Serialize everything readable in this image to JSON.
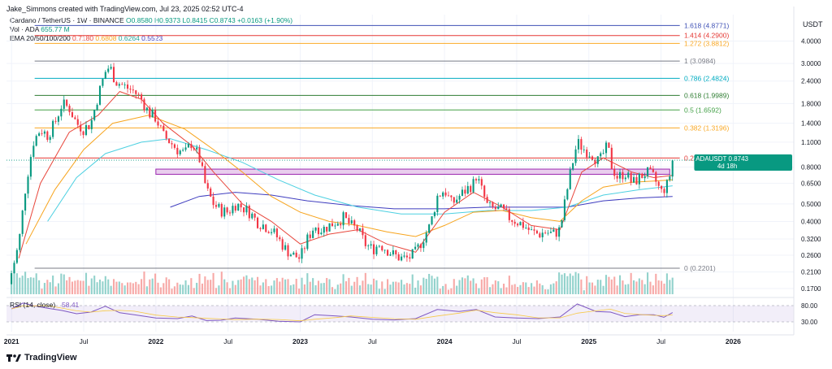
{
  "header": {
    "caption": "Jake_Simmons created with TradingView.com, Jul 23, 2025 02:52 UTC-4"
  },
  "legend": {
    "symbol": "Cardano / TetherUS · 1W · BINANCE",
    "ohlc": "O0.8580 H0.9373 L0.8415 C0.8743 +0.0163 (+1.90%)",
    "vol_label": "Vol · ADA",
    "vol_value": "655.77 M",
    "ema_label": "EMA 20/50/100/200",
    "ema_values": [
      {
        "text": "0.7180",
        "color": "#e8473c"
      },
      {
        "text": "0.6808",
        "color": "#f7a41d"
      },
      {
        "text": "0.6264",
        "color": "#4dd0e1"
      },
      {
        "text": "0.5523",
        "color": "#3f3dbf"
      }
    ]
  },
  "rsi": {
    "label": "RSI (14, close)",
    "value": "58.41",
    "axis_labels": [
      "80.00",
      "30.00"
    ],
    "upper": 80,
    "lower": 30
  },
  "branding": "TradingView",
  "chart_data": {
    "type": "candlestick",
    "y_scale": "log",
    "currency_label": "USDT",
    "y_ticks": [
      "4.0000",
      "3.0000",
      "2.4000",
      "1.8000",
      "1.4000",
      "1.1000",
      "0.8000",
      "0.6500",
      "0.5000",
      "0.4000",
      "0.3200",
      "0.2600",
      "0.2100",
      "0.1700"
    ],
    "y_tick_values": [
      4.0,
      3.0,
      2.4,
      1.8,
      1.4,
      1.1,
      0.8,
      0.65,
      0.5,
      0.4,
      0.32,
      0.26,
      0.21,
      0.17
    ],
    "x_ticks": [
      "2021",
      "Jul",
      "2022",
      "Jul",
      "2023",
      "Jul",
      "2024",
      "Jul",
      "2025",
      "Jul",
      "2026"
    ],
    "x_tick_values": [
      2021.0,
      2021.5,
      2022.0,
      2022.5,
      2023.0,
      2023.5,
      2024.0,
      2024.5,
      2025.0,
      2025.5,
      2026.0
    ],
    "current_price": {
      "symbol": "ADAUSDT",
      "price": "0.8743",
      "countdown": "4d 18h",
      "value": 0.8743
    },
    "fib_levels": [
      {
        "label": "1.618 (4.8771)",
        "value": 4.8771,
        "color": "#3f51b5"
      },
      {
        "label": "1.414 (4.2900)",
        "value": 4.29,
        "color": "#e53935"
      },
      {
        "label": "1.272 (3.8812)",
        "value": 3.8812,
        "color": "#f9a825"
      },
      {
        "label": "1 (3.0984)",
        "value": 3.0984,
        "color": "#787b86"
      },
      {
        "label": "0.786 (2.4824)",
        "value": 2.4824,
        "color": "#00acc1"
      },
      {
        "label": "0.618 (1.9989)",
        "value": 1.9989,
        "color": "#2e7d32"
      },
      {
        "label": "0.5 (1.6592)",
        "value": 1.6592,
        "color": "#43a047"
      },
      {
        "label": "0.382 (1.3196)",
        "value": 1.3196,
        "color": "#f9a825"
      },
      {
        "label": "0.236 (0.8994)",
        "value": 0.8994,
        "color": "#e53935"
      },
      {
        "label": "0 (0.2201)",
        "value": 0.2201,
        "color": "#787b86"
      }
    ],
    "zone": {
      "from": 2022.0,
      "to": 2025.56,
      "low": 0.73,
      "high": 0.78
    },
    "price_path": [
      [
        2020.98,
        0.18
      ],
      [
        2021.05,
        0.3
      ],
      [
        2021.1,
        0.65
      ],
      [
        2021.15,
        1.1
      ],
      [
        2021.2,
        1.3
      ],
      [
        2021.25,
        1.2
      ],
      [
        2021.3,
        1.4
      ],
      [
        2021.35,
        1.8
      ],
      [
        2021.4,
        1.7
      ],
      [
        2021.45,
        1.4
      ],
      [
        2021.5,
        1.3
      ],
      [
        2021.55,
        1.4
      ],
      [
        2021.6,
        2.0
      ],
      [
        2021.65,
        2.7
      ],
      [
        2021.68,
        2.9
      ],
      [
        2021.72,
        2.4
      ],
      [
        2021.8,
        2.2
      ],
      [
        2021.85,
        2.1
      ],
      [
        2021.9,
        1.9
      ],
      [
        2021.95,
        1.6
      ],
      [
        2022.0,
        1.5
      ],
      [
        2022.05,
        1.2
      ],
      [
        2022.1,
        1.1
      ],
      [
        2022.15,
        1.0
      ],
      [
        2022.2,
        0.95
      ],
      [
        2022.25,
        1.1
      ],
      [
        2022.3,
        0.9
      ],
      [
        2022.35,
        0.6
      ],
      [
        2022.4,
        0.5
      ],
      [
        2022.45,
        0.46
      ],
      [
        2022.5,
        0.45
      ],
      [
        2022.55,
        0.5
      ],
      [
        2022.6,
        0.48
      ],
      [
        2022.65,
        0.45
      ],
      [
        2022.7,
        0.4
      ],
      [
        2022.75,
        0.38
      ],
      [
        2022.8,
        0.36
      ],
      [
        2022.85,
        0.32
      ],
      [
        2022.9,
        0.28
      ],
      [
        2022.95,
        0.26
      ],
      [
        2023.0,
        0.25
      ],
      [
        2023.05,
        0.32
      ],
      [
        2023.1,
        0.38
      ],
      [
        2023.15,
        0.36
      ],
      [
        2023.2,
        0.38
      ],
      [
        2023.25,
        0.4
      ],
      [
        2023.3,
        0.42
      ],
      [
        2023.35,
        0.38
      ],
      [
        2023.4,
        0.36
      ],
      [
        2023.45,
        0.3
      ],
      [
        2023.5,
        0.28
      ],
      [
        2023.55,
        0.3
      ],
      [
        2023.6,
        0.28
      ],
      [
        2023.65,
        0.26
      ],
      [
        2023.7,
        0.25
      ],
      [
        2023.75,
        0.25
      ],
      [
        2023.8,
        0.27
      ],
      [
        2023.85,
        0.32
      ],
      [
        2023.9,
        0.38
      ],
      [
        2023.95,
        0.55
      ],
      [
        2024.0,
        0.6
      ],
      [
        2024.05,
        0.5
      ],
      [
        2024.1,
        0.55
      ],
      [
        2024.15,
        0.6
      ],
      [
        2024.2,
        0.65
      ],
      [
        2024.22,
        0.72
      ],
      [
        2024.25,
        0.62
      ],
      [
        2024.3,
        0.48
      ],
      [
        2024.35,
        0.47
      ],
      [
        2024.4,
        0.46
      ],
      [
        2024.45,
        0.42
      ],
      [
        2024.5,
        0.4
      ],
      [
        2024.55,
        0.38
      ],
      [
        2024.6,
        0.35
      ],
      [
        2024.65,
        0.34
      ],
      [
        2024.7,
        0.35
      ],
      [
        2024.75,
        0.34
      ],
      [
        2024.8,
        0.36
      ],
      [
        2024.85,
        0.6
      ],
      [
        2024.88,
        0.8
      ],
      [
        2024.92,
        1.1
      ],
      [
        2024.97,
        1.0
      ],
      [
        2025.02,
        0.95
      ],
      [
        2025.07,
        0.85
      ],
      [
        2025.1,
        0.95
      ],
      [
        2025.13,
        1.05
      ],
      [
        2025.16,
        0.8
      ],
      [
        2025.2,
        0.7
      ],
      [
        2025.25,
        0.75
      ],
      [
        2025.3,
        0.65
      ],
      [
        2025.35,
        0.7
      ],
      [
        2025.4,
        0.75
      ],
      [
        2025.45,
        0.7
      ],
      [
        2025.5,
        0.58
      ],
      [
        2025.55,
        0.65
      ],
      [
        2025.58,
        0.8743
      ]
    ],
    "ema_20": [
      [
        2021.05,
        0.25
      ],
      [
        2021.2,
        0.65
      ],
      [
        2021.4,
        1.25
      ],
      [
        2021.6,
        1.55
      ],
      [
        2021.75,
        2.1
      ],
      [
        2021.9,
        1.9
      ],
      [
        2022.05,
        1.4
      ],
      [
        2022.25,
        1.05
      ],
      [
        2022.4,
        0.75
      ],
      [
        2022.6,
        0.5
      ],
      [
        2022.8,
        0.4
      ],
      [
        2023.0,
        0.3
      ],
      [
        2023.2,
        0.34
      ],
      [
        2023.4,
        0.36
      ],
      [
        2023.6,
        0.3
      ],
      [
        2023.8,
        0.27
      ],
      [
        2024.0,
        0.45
      ],
      [
        2024.2,
        0.58
      ],
      [
        2024.4,
        0.48
      ],
      [
        2024.6,
        0.38
      ],
      [
        2024.8,
        0.36
      ],
      [
        2024.95,
        0.75
      ],
      [
        2025.1,
        0.9
      ],
      [
        2025.3,
        0.75
      ],
      [
        2025.45,
        0.7
      ],
      [
        2025.58,
        0.72
      ]
    ],
    "ema_50": [
      [
        2021.1,
        0.3
      ],
      [
        2021.3,
        0.6
      ],
      [
        2021.5,
        1.0
      ],
      [
        2021.7,
        1.4
      ],
      [
        2021.95,
        1.55
      ],
      [
        2022.2,
        1.3
      ],
      [
        2022.4,
        1.0
      ],
      [
        2022.6,
        0.75
      ],
      [
        2022.8,
        0.55
      ],
      [
        2023.0,
        0.45
      ],
      [
        2023.2,
        0.4
      ],
      [
        2023.4,
        0.38
      ],
      [
        2023.6,
        0.35
      ],
      [
        2023.8,
        0.33
      ],
      [
        2024.0,
        0.38
      ],
      [
        2024.2,
        0.45
      ],
      [
        2024.4,
        0.46
      ],
      [
        2024.6,
        0.42
      ],
      [
        2024.8,
        0.4
      ],
      [
        2024.95,
        0.52
      ],
      [
        2025.1,
        0.62
      ],
      [
        2025.3,
        0.66
      ],
      [
        2025.45,
        0.67
      ],
      [
        2025.58,
        0.68
      ]
    ],
    "ema_100": [
      [
        2021.25,
        0.4
      ],
      [
        2021.45,
        0.7
      ],
      [
        2021.65,
        0.95
      ],
      [
        2021.9,
        1.1
      ],
      [
        2022.1,
        1.15
      ],
      [
        2022.35,
        1.0
      ],
      [
        2022.6,
        0.85
      ],
      [
        2022.85,
        0.68
      ],
      [
        2023.1,
        0.56
      ],
      [
        2023.4,
        0.48
      ],
      [
        2023.7,
        0.44
      ],
      [
        2024.0,
        0.44
      ],
      [
        2024.3,
        0.46
      ],
      [
        2024.6,
        0.46
      ],
      [
        2024.85,
        0.48
      ],
      [
        2025.1,
        0.56
      ],
      [
        2025.35,
        0.6
      ],
      [
        2025.58,
        0.63
      ]
    ],
    "ema_200": [
      [
        2022.1,
        0.48
      ],
      [
        2022.3,
        0.55
      ],
      [
        2022.55,
        0.58
      ],
      [
        2022.8,
        0.56
      ],
      [
        2023.05,
        0.52
      ],
      [
        2023.35,
        0.49
      ],
      [
        2023.65,
        0.47
      ],
      [
        2024.0,
        0.47
      ],
      [
        2024.3,
        0.48
      ],
      [
        2024.6,
        0.48
      ],
      [
        2024.85,
        0.48
      ],
      [
        2025.1,
        0.52
      ],
      [
        2025.35,
        0.54
      ],
      [
        2025.58,
        0.55
      ]
    ],
    "rsi_path": [
      [
        2021.0,
        70
      ],
      [
        2021.08,
        88
      ],
      [
        2021.15,
        80
      ],
      [
        2021.25,
        72
      ],
      [
        2021.35,
        65
      ],
      [
        2021.45,
        55
      ],
      [
        2021.55,
        60
      ],
      [
        2021.65,
        78
      ],
      [
        2021.75,
        58
      ],
      [
        2021.85,
        52
      ],
      [
        2022.0,
        42
      ],
      [
        2022.15,
        40
      ],
      [
        2022.25,
        48
      ],
      [
        2022.35,
        34
      ],
      [
        2022.45,
        35
      ],
      [
        2022.55,
        42
      ],
      [
        2022.7,
        38
      ],
      [
        2022.85,
        32
      ],
      [
        2023.0,
        30
      ],
      [
        2023.1,
        52
      ],
      [
        2023.25,
        48
      ],
      [
        2023.35,
        45
      ],
      [
        2023.5,
        38
      ],
      [
        2023.65,
        36
      ],
      [
        2023.8,
        40
      ],
      [
        2023.95,
        68
      ],
      [
        2024.1,
        62
      ],
      [
        2024.22,
        68
      ],
      [
        2024.35,
        45
      ],
      [
        2024.5,
        42
      ],
      [
        2024.65,
        40
      ],
      [
        2024.8,
        45
      ],
      [
        2024.92,
        85
      ],
      [
        2025.05,
        62
      ],
      [
        2025.15,
        60
      ],
      [
        2025.25,
        46
      ],
      [
        2025.35,
        52
      ],
      [
        2025.45,
        52
      ],
      [
        2025.52,
        44
      ],
      [
        2025.58,
        58.41
      ]
    ]
  }
}
